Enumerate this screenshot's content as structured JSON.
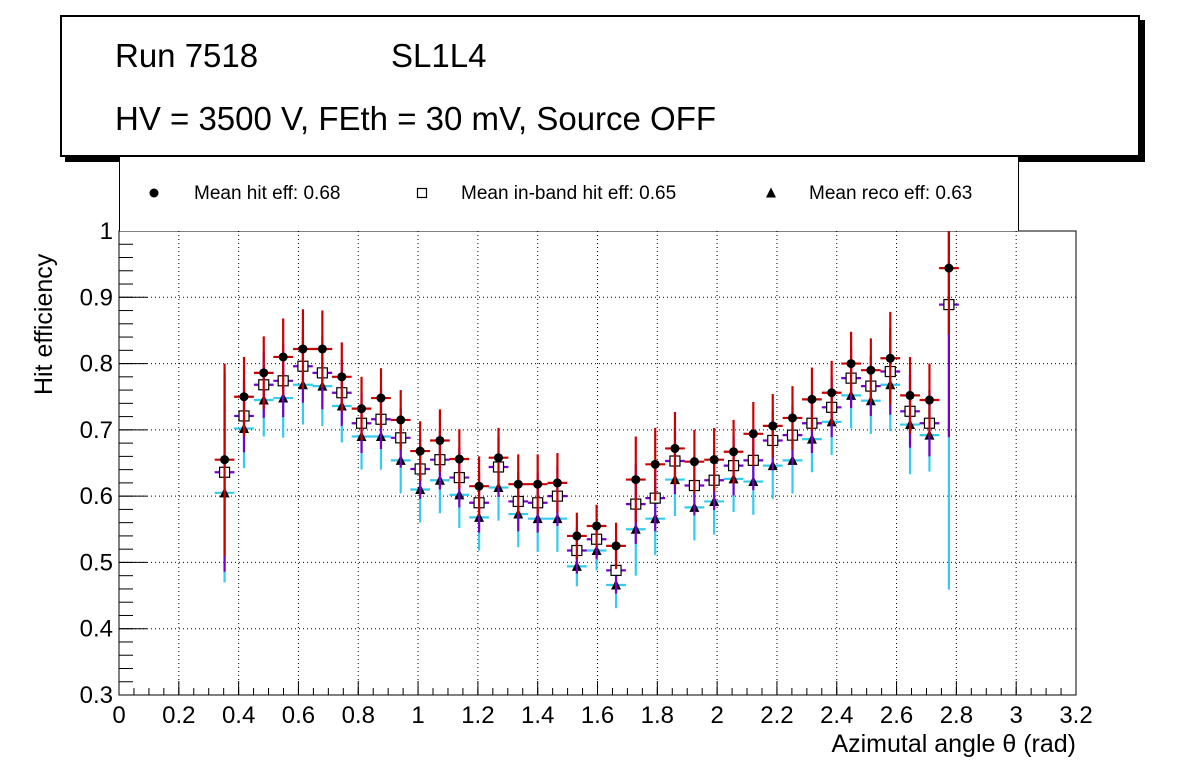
{
  "header": {
    "run_label": "Run 7518",
    "layer_label": "SL1L4",
    "conditions": "HV = 3500 V, FEth = 30 mV, Source OFF"
  },
  "legend": {
    "hit": "Mean hit  eff: 0.68",
    "inband": "Mean in-band hit eff: 0.65",
    "reco": "Mean reco eff: 0.63"
  },
  "chart_data": {
    "type": "scatter",
    "title": "Run 7518  SL1L4  HV = 3500 V, FEth = 30 mV, Source OFF",
    "xlabel": "Azimutal angle θ (rad)",
    "ylabel": "Hit efficiency",
    "xlim": [
      0,
      3.2
    ],
    "ylim": [
      0.3,
      1.0
    ],
    "grid": true,
    "legend_position": "top",
    "x_ticks": [
      "0",
      "0.2",
      "0.4",
      "0.6",
      "0.8",
      "1",
      "1.2",
      "1.4",
      "1.6",
      "1.8",
      "2",
      "2.2",
      "2.4",
      "2.6",
      "2.8",
      "3",
      "3.2"
    ],
    "y_ticks": [
      "0.3",
      "0.4",
      "0.5",
      "0.6",
      "0.7",
      "0.8",
      "0.9",
      "1"
    ],
    "x": [
      0.353,
      0.418,
      0.484,
      0.549,
      0.615,
      0.68,
      0.745,
      0.811,
      0.876,
      0.942,
      1.007,
      1.073,
      1.138,
      1.204,
      1.269,
      1.335,
      1.4,
      1.466,
      1.531,
      1.597,
      1.662,
      1.728,
      1.793,
      1.859,
      1.924,
      1.99,
      2.055,
      2.121,
      2.186,
      2.252,
      2.317,
      2.383,
      2.448,
      2.514,
      2.579,
      2.645,
      2.71,
      2.775
    ],
    "x_half_width": 0.033,
    "series": [
      {
        "name": "Mean hit  eff: 0.68",
        "marker": "circle",
        "color": "#cc0000",
        "values": [
          0.655,
          0.75,
          0.786,
          0.81,
          0.822,
          0.822,
          0.78,
          0.732,
          0.748,
          0.715,
          0.668,
          0.684,
          0.656,
          0.615,
          0.658,
          0.618,
          0.618,
          0.62,
          0.54,
          0.555,
          0.525,
          0.625,
          0.648,
          0.672,
          0.652,
          0.655,
          0.667,
          0.694,
          0.706,
          0.718,
          0.746,
          0.756,
          0.8,
          0.79,
          0.808,
          0.752,
          0.745,
          0.944
        ],
        "errors": [
          0.145,
          0.06,
          0.055,
          0.058,
          0.06,
          0.058,
          0.052,
          0.048,
          0.045,
          0.045,
          0.045,
          0.047,
          0.045,
          0.045,
          0.045,
          0.045,
          0.045,
          0.045,
          0.035,
          0.032,
          0.035,
          0.065,
          0.055,
          0.055,
          0.048,
          0.048,
          0.048,
          0.048,
          0.048,
          0.048,
          0.048,
          0.048,
          0.048,
          0.048,
          0.07,
          0.058,
          0.055,
          0.1
        ]
      },
      {
        "name": "Mean in-band hit eff: 0.65",
        "marker": "open-square",
        "color": "#7700cc",
        "values": [
          0.636,
          0.721,
          0.768,
          0.774,
          0.796,
          0.786,
          0.756,
          0.71,
          0.716,
          0.688,
          0.641,
          0.655,
          0.628,
          0.59,
          0.644,
          0.592,
          0.59,
          0.6,
          0.518,
          0.535,
          0.488,
          0.588,
          0.597,
          0.653,
          0.616,
          0.624,
          0.646,
          0.654,
          0.684,
          0.692,
          0.71,
          0.734,
          0.778,
          0.766,
          0.788,
          0.728,
          0.71,
          0.889
        ],
        "errors": [
          0.15,
          0.055,
          0.05,
          0.055,
          0.055,
          0.055,
          0.05,
          0.045,
          0.045,
          0.045,
          0.045,
          0.045,
          0.045,
          0.045,
          0.045,
          0.045,
          0.045,
          0.045,
          0.035,
          0.03,
          0.035,
          0.06,
          0.05,
          0.05,
          0.045,
          0.045,
          0.045,
          0.045,
          0.045,
          0.045,
          0.045,
          0.045,
          0.045,
          0.045,
          0.065,
          0.055,
          0.05,
          0.2
        ]
      },
      {
        "name": "Mean reco eff: 0.63",
        "marker": "triangle",
        "color": "#33ccee",
        "values": [
          0.605,
          0.702,
          0.745,
          0.748,
          0.768,
          0.766,
          0.736,
          0.69,
          0.69,
          0.654,
          0.61,
          0.624,
          0.602,
          0.568,
          0.613,
          0.573,
          0.566,
          0.566,
          0.494,
          0.518,
          0.466,
          0.55,
          0.566,
          0.625,
          0.583,
          0.592,
          0.626,
          0.622,
          0.646,
          0.654,
          0.686,
          0.712,
          0.752,
          0.744,
          0.768,
          0.708,
          0.692,
          0.889
        ],
        "errors": [
          0.135,
          0.06,
          0.055,
          0.06,
          0.06,
          0.06,
          0.055,
          0.05,
          0.05,
          0.05,
          0.05,
          0.05,
          0.05,
          0.05,
          0.05,
          0.05,
          0.05,
          0.05,
          0.03,
          0.03,
          0.035,
          0.07,
          0.055,
          0.055,
          0.05,
          0.05,
          0.05,
          0.05,
          0.05,
          0.05,
          0.05,
          0.05,
          0.05,
          0.05,
          0.07,
          0.075,
          0.055,
          0.43
        ]
      }
    ]
  }
}
